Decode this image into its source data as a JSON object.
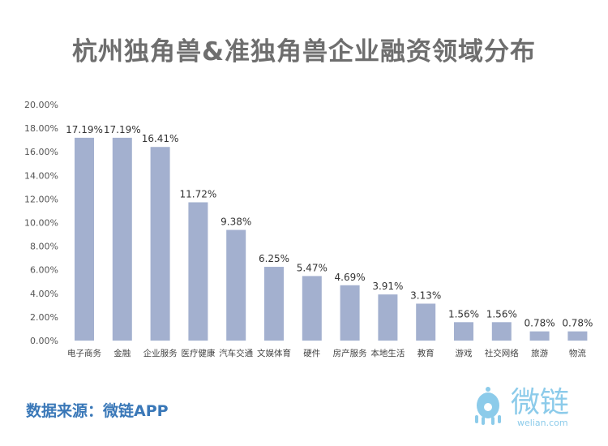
{
  "title": "杭州独角兽&准独角兽企业融资领域分布",
  "source": "数据来源：微链APP",
  "logo": {
    "text": "微链",
    "domain": "welian.com",
    "color": "#8ccbea"
  },
  "chart_data": {
    "type": "bar",
    "title": "杭州独角兽&准独角兽企业融资领域分布",
    "categories": [
      "电子商务",
      "金融",
      "企业服务",
      "医疗健康",
      "汽车交通",
      "文娱体育",
      "硬件",
      "房产服务",
      "本地生活",
      "教育",
      "游戏",
      "社交网络",
      "旅游",
      "物流"
    ],
    "values": [
      17.19,
      17.19,
      16.41,
      11.72,
      9.38,
      6.25,
      5.47,
      4.69,
      3.91,
      3.13,
      1.56,
      1.56,
      0.78,
      0.78
    ],
    "data_labels": [
      "17.19%",
      "17.19%",
      "16.41%",
      "11.72%",
      "9.38%",
      "6.25%",
      "5.47%",
      "4.69%",
      "3.91%",
      "3.13%",
      "1.56%",
      "1.56%",
      "0.78%",
      "0.78%"
    ],
    "y_ticks": [
      "0.00%",
      "2.00%",
      "4.00%",
      "6.00%",
      "8.00%",
      "10.00%",
      "12.00%",
      "14.00%",
      "16.00%",
      "18.00%",
      "20.00%"
    ],
    "ylim": [
      0,
      20
    ],
    "grid": false,
    "bar_color": "#a3b0cf"
  }
}
